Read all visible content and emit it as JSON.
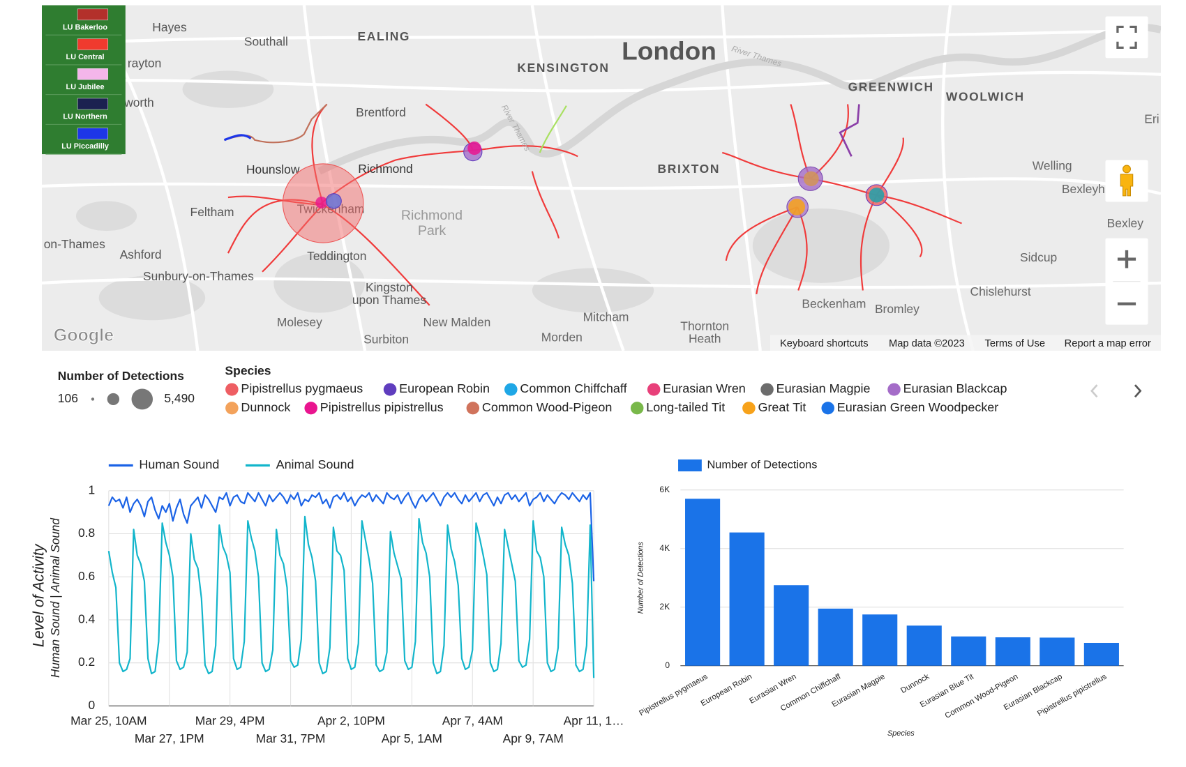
{
  "map": {
    "labels": [
      "Hayes",
      "Southall",
      "EALING",
      "KENSINGTON",
      "London",
      "River Thames",
      "GREENWICH",
      "WOOLWICH",
      "Eri",
      "rayton",
      "worth",
      "Brentford",
      "Hounslow",
      "Richmond",
      "Twickenham",
      "Feltham",
      "on-Thames",
      "Ashford",
      "Teddington",
      "Sunbury-on-Thames",
      "Kingston",
      "upon Thames",
      "Richmond",
      "Park",
      "BRIXTON",
      "Welling",
      "Bexleyh",
      "Bexley",
      "Sidcup",
      "Chislehurst",
      "Beckenham",
      "Bromley",
      "Mitcham",
      "Molesey",
      "New Malden",
      "Thornton",
      "Heath",
      "Morden",
      "Surbiton",
      "River Thames"
    ],
    "layers": [
      {
        "name": "LU Bakerloo",
        "color": "#b3302b"
      },
      {
        "name": "LU Central",
        "color": "#f03a2e"
      },
      {
        "name": "LU Jubilee",
        "color": "#f4b6ea"
      },
      {
        "name": "LU Northern",
        "color": "#1b2150"
      },
      {
        "name": "LU Piccadilly",
        "color": "#1d36e8"
      }
    ],
    "attribution": "Google",
    "footer": [
      "Keyboard shortcuts",
      "Map data ©2023",
      "Terms of Use",
      "Report a map error"
    ]
  },
  "size_legend": {
    "title": "Number of Detections",
    "min": "106",
    "max": "5,490"
  },
  "species_legend": {
    "title": "Species",
    "items": [
      {
        "name": "Pipistrellus pygmaeus",
        "color": "#ee5e63"
      },
      {
        "name": "European Robin",
        "color": "#5f3dbe"
      },
      {
        "name": "Common Chiffchaff",
        "color": "#1fa7e6"
      },
      {
        "name": "Eurasian Wren",
        "color": "#e8407a"
      },
      {
        "name": "Eurasian Magpie",
        "color": "#6c6c6c"
      },
      {
        "name": "Eurasian Blackcap",
        "color": "#a46cc8"
      },
      {
        "name": "Dunnock",
        "color": "#f3a25b"
      },
      {
        "name": "Pipistrellus pipistrellus",
        "color": "#e9158f"
      },
      {
        "name": "Common Wood-Pigeon",
        "color": "#d0735c"
      },
      {
        "name": "Long-tailed Tit",
        "color": "#79b84a"
      },
      {
        "name": "Great Tit",
        "color": "#f7a21a"
      },
      {
        "name": "Eurasian Green Woodpecker",
        "color": "#1a73e8"
      }
    ]
  },
  "chart_data": [
    {
      "type": "line",
      "ylabel": "Level of Activity",
      "ylabel2": "Human Sound | Animal Sound",
      "ylim": [
        0,
        1
      ],
      "yticks": [
        0,
        0.2,
        0.4,
        0.6,
        0.8,
        1
      ],
      "grid": true,
      "x": [
        "Mar 25, 10AM",
        null,
        null,
        null,
        null,
        null,
        null,
        null,
        null,
        null,
        null,
        null,
        null,
        null,
        null,
        null,
        null,
        "Mar 27, 1PM",
        null,
        null,
        null,
        null,
        null,
        null,
        null,
        null,
        null,
        null,
        null,
        null,
        null,
        null,
        null,
        null,
        "Mar 29, 4PM",
        null,
        null,
        null,
        null,
        null,
        null,
        null,
        null,
        null,
        null,
        null,
        null,
        null,
        null,
        null,
        null,
        "Mar 31, 7PM",
        null,
        null,
        null,
        null,
        null,
        null,
        null,
        null,
        null,
        null,
        null,
        null,
        null,
        null,
        null,
        null,
        "Apr 2, 10PM",
        null,
        null,
        null,
        null,
        null,
        null,
        null,
        null,
        null,
        null,
        null,
        null,
        null,
        null,
        null,
        null,
        "Apr 5, 1AM",
        null,
        null,
        null,
        null,
        null,
        null,
        null,
        null,
        null,
        null,
        null,
        null,
        null,
        null,
        null,
        null,
        "Apr 7, 4AM",
        null,
        null,
        null,
        null,
        null,
        null,
        null,
        null,
        null,
        null,
        null,
        null,
        null,
        null,
        null,
        null,
        "Apr 9, 7AM",
        null,
        null,
        null,
        null,
        null,
        null,
        null,
        null,
        null,
        null,
        null,
        null,
        null,
        null,
        null,
        null,
        "Apr 11, 1…"
      ],
      "series": [
        {
          "name": "Human Sound",
          "color": "#1a62e6",
          "values": [
            0.93,
            0.97,
            0.95,
            0.96,
            0.92,
            0.97,
            0.9,
            0.94,
            0.96,
            0.93,
            0.88,
            0.95,
            0.97,
            0.91,
            0.87,
            0.93,
            0.9,
            0.94,
            0.86,
            0.92,
            0.96,
            0.89,
            0.85,
            0.93,
            0.95,
            0.97,
            0.92,
            0.98,
            0.96,
            0.93,
            0.9,
            0.97,
            0.96,
            0.99,
            0.93,
            0.97,
            0.98,
            0.95,
            0.94,
            0.99,
            0.97,
            0.95,
            0.99,
            0.96,
            0.93,
            0.98,
            0.95,
            0.97,
            0.99,
            0.97,
            0.94,
            0.98,
            0.96,
            0.99,
            0.93,
            0.96,
            0.95,
            0.98,
            0.97,
            0.99,
            0.94,
            0.96,
            0.92,
            0.97,
            0.98,
            0.96,
            0.99,
            0.95,
            0.97,
            0.93,
            0.96,
            0.98,
            0.97,
            0.99,
            0.95,
            0.98,
            0.96,
            0.94,
            0.99,
            0.97,
            0.96,
            0.98,
            0.94,
            0.97,
            0.99,
            0.95,
            0.92,
            0.96,
            0.98,
            0.95,
            0.97,
            0.99,
            0.96,
            0.93,
            0.97,
            0.99,
            0.97,
            0.99,
            0.96,
            0.94,
            0.98,
            0.95,
            0.97,
            0.99,
            0.95,
            0.98,
            0.99,
            0.96,
            0.93,
            0.97,
            0.94,
            0.98,
            0.99,
            0.96,
            0.98,
            0.95,
            0.97,
            0.99,
            0.93,
            0.96,
            0.97,
            0.99,
            0.95,
            0.98,
            0.96,
            0.94,
            0.97,
            0.99,
            0.98,
            0.96,
            0.99,
            0.97,
            0.95,
            0.98,
            0.96,
            0.99,
            0.58
          ]
        },
        {
          "name": "Animal Sound",
          "color": "#12b5cb",
          "values": [
            0.72,
            0.62,
            0.55,
            0.2,
            0.16,
            0.17,
            0.22,
            0.82,
            0.7,
            0.66,
            0.58,
            0.22,
            0.15,
            0.16,
            0.3,
            0.85,
            0.76,
            0.7,
            0.6,
            0.21,
            0.17,
            0.18,
            0.25,
            0.8,
            0.68,
            0.64,
            0.5,
            0.19,
            0.15,
            0.16,
            0.28,
            0.84,
            0.74,
            0.7,
            0.62,
            0.22,
            0.17,
            0.18,
            0.3,
            0.86,
            0.78,
            0.72,
            0.6,
            0.2,
            0.16,
            0.17,
            0.26,
            0.82,
            0.7,
            0.66,
            0.55,
            0.21,
            0.18,
            0.19,
            0.31,
            0.88,
            0.75,
            0.69,
            0.58,
            0.2,
            0.15,
            0.16,
            0.27,
            0.83,
            0.72,
            0.7,
            0.63,
            0.22,
            0.17,
            0.18,
            0.29,
            0.86,
            0.77,
            0.68,
            0.57,
            0.19,
            0.16,
            0.17,
            0.25,
            0.81,
            0.71,
            0.65,
            0.59,
            0.21,
            0.17,
            0.18,
            0.3,
            0.87,
            0.76,
            0.71,
            0.6,
            0.2,
            0.15,
            0.16,
            0.28,
            0.84,
            0.73,
            0.67,
            0.56,
            0.22,
            0.17,
            0.18,
            0.26,
            0.85,
            0.78,
            0.7,
            0.61,
            0.2,
            0.16,
            0.17,
            0.29,
            0.82,
            0.74,
            0.66,
            0.58,
            0.21,
            0.18,
            0.19,
            0.31,
            0.86,
            0.72,
            0.69,
            0.6,
            0.2,
            0.16,
            0.17,
            0.27,
            0.83,
            0.75,
            0.7,
            0.57,
            0.19,
            0.16,
            0.17,
            0.28,
            0.84,
            0.13
          ]
        }
      ]
    },
    {
      "type": "bar",
      "ylabel": "Number of Detections",
      "xlabel": "Species",
      "ylim": [
        0,
        6000
      ],
      "yticks": [
        0,
        {
          "value": 2000,
          "label": "2K"
        },
        {
          "value": 4000,
          "label": "4K"
        },
        {
          "value": 6000,
          "label": "6K"
        }
      ],
      "grid": true,
      "categories": [
        "Pipistrellus pygmaeus",
        "European Robin",
        "Eurasian Wren",
        "Common Chiffchaff",
        "Eurasian Magpie",
        "Dunnock",
        "Eurasian Blue Tit",
        "Common Wood-Pigeon",
        "Eurasian Blackcap",
        "Pipistrellus pipistrellus"
      ],
      "series": [
        {
          "name": "Number of Detections",
          "color": "#1a73e8",
          "values": [
            5700,
            4550,
            2750,
            1950,
            1750,
            1370,
            1000,
            970,
            960,
            780
          ]
        }
      ]
    }
  ]
}
